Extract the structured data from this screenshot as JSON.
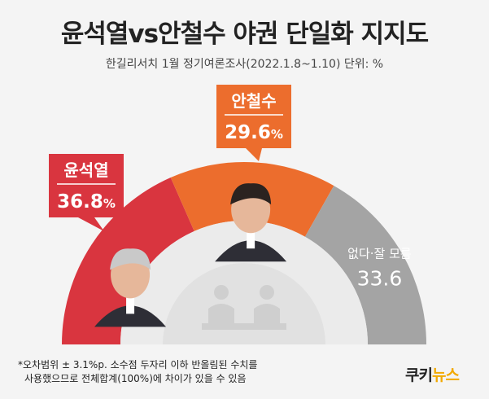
{
  "title": "윤석열vs안철수 야권 단일화 지지도",
  "subtitle": "한길리서치 1월 정기여론조사(2022.1.8~1.10) 단위: %",
  "chart_data": {
    "type": "pie",
    "shape": "semicircle donut",
    "title": "윤석열vs안철수 야권 단일화 지지도",
    "unit": "%",
    "slices": [
      {
        "label": "윤석열",
        "value": 36.8,
        "value_text": "36.8",
        "color": "#d9353f",
        "label_style": "callout"
      },
      {
        "label": "안철수",
        "value": 29.6,
        "value_text": "29.6",
        "color": "#ec6d2d",
        "label_style": "callout"
      },
      {
        "label": "없다·잘 모름",
        "value": 33.6,
        "value_text": "33.6",
        "color": "#a4a4a4",
        "label_style": "inside"
      }
    ]
  },
  "footnote": {
    "line1": "*오차범위 ± 3.1%p. 소수점 두자리 이하 반올림된 수치를",
    "line2": "사용했으므로 전체합계(100%)에 차이가 있을 수 있음"
  },
  "logo": {
    "part1": "쿠키",
    "part2": "뉴스"
  },
  "icons": {
    "center_icon": "people-talking-icon",
    "photo_1": "person-portrait-icon",
    "photo_2": "person-portrait-icon"
  }
}
